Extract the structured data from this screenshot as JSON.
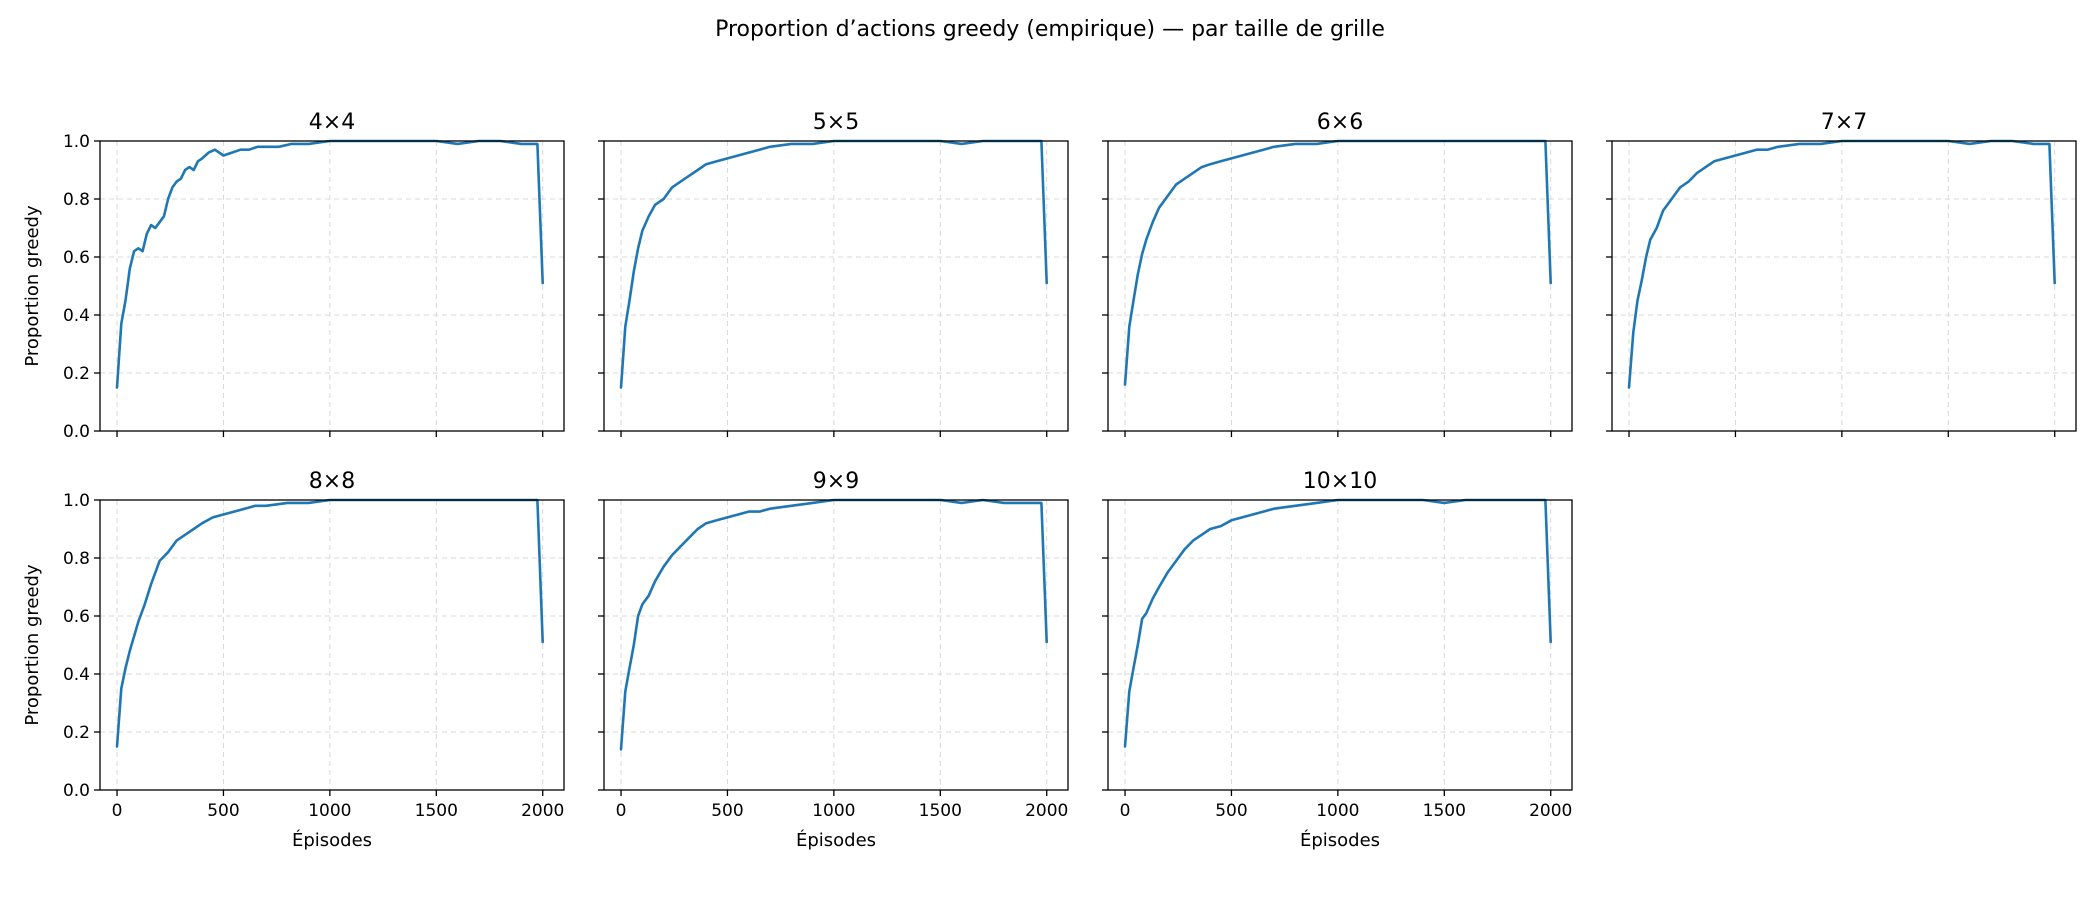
{
  "figure_title": "Proportion d’actions greedy (empirique) — par taille de grille",
  "colors": {
    "line": "#1f77b4",
    "grid": "#d9d9d9"
  },
  "chart_data": [
    {
      "type": "line",
      "title": "4×4",
      "xlabel": "",
      "ylabel": "Proportion greedy",
      "xlim": [
        -80,
        2100
      ],
      "ylim": [
        0,
        1.0
      ],
      "xticks": [
        0,
        500,
        1000,
        1500,
        2000
      ],
      "yticks": [
        0.0,
        0.2,
        0.4,
        0.6,
        0.8,
        1.0
      ],
      "x": [
        0,
        20,
        40,
        60,
        80,
        100,
        120,
        140,
        160,
        180,
        200,
        220,
        240,
        260,
        280,
        300,
        320,
        340,
        360,
        380,
        400,
        430,
        460,
        500,
        540,
        580,
        620,
        660,
        700,
        760,
        820,
        900,
        1000,
        1100,
        1200,
        1300,
        1400,
        1500,
        1600,
        1700,
        1800,
        1900,
        1960,
        1975,
        2000
      ],
      "y": [
        0.15,
        0.37,
        0.45,
        0.56,
        0.62,
        0.63,
        0.62,
        0.68,
        0.71,
        0.7,
        0.72,
        0.74,
        0.8,
        0.84,
        0.86,
        0.87,
        0.9,
        0.91,
        0.9,
        0.93,
        0.94,
        0.96,
        0.97,
        0.95,
        0.96,
        0.97,
        0.97,
        0.98,
        0.98,
        0.98,
        0.99,
        0.99,
        1.0,
        1.0,
        1.0,
        1.0,
        1.0,
        1.0,
        0.99,
        1.0,
        1.0,
        0.99,
        0.99,
        0.99,
        0.51
      ]
    },
    {
      "type": "line",
      "title": "5×5",
      "xlabel": "",
      "ylabel": "",
      "xlim": [
        -80,
        2100
      ],
      "ylim": [
        0,
        1.0
      ],
      "xticks": [
        0,
        500,
        1000,
        1500,
        2000
      ],
      "yticks": [
        0.0,
        0.2,
        0.4,
        0.6,
        0.8,
        1.0
      ],
      "x": [
        0,
        20,
        40,
        60,
        80,
        100,
        130,
        160,
        200,
        240,
        280,
        320,
        360,
        400,
        450,
        500,
        550,
        600,
        650,
        700,
        800,
        900,
        1000,
        1100,
        1200,
        1300,
        1400,
        1500,
        1600,
        1700,
        1800,
        1900,
        1960,
        1975,
        2000
      ],
      "y": [
        0.15,
        0.36,
        0.45,
        0.55,
        0.63,
        0.69,
        0.74,
        0.78,
        0.8,
        0.84,
        0.86,
        0.88,
        0.9,
        0.92,
        0.93,
        0.94,
        0.95,
        0.96,
        0.97,
        0.98,
        0.99,
        0.99,
        1.0,
        1.0,
        1.0,
        1.0,
        1.0,
        1.0,
        0.99,
        1.0,
        1.0,
        1.0,
        1.0,
        1.0,
        0.51
      ]
    },
    {
      "type": "line",
      "title": "6×6",
      "xlabel": "",
      "ylabel": "",
      "xlim": [
        -80,
        2100
      ],
      "ylim": [
        0,
        1.0
      ],
      "xticks": [
        0,
        500,
        1000,
        1500,
        2000
      ],
      "yticks": [
        0.0,
        0.2,
        0.4,
        0.6,
        0.8,
        1.0
      ],
      "x": [
        0,
        20,
        40,
        60,
        80,
        100,
        130,
        160,
        200,
        240,
        280,
        320,
        360,
        400,
        450,
        500,
        550,
        600,
        650,
        700,
        800,
        900,
        1000,
        1100,
        1200,
        1300,
        1400,
        1500,
        1600,
        1700,
        1800,
        1900,
        1960,
        1975,
        2000
      ],
      "y": [
        0.16,
        0.36,
        0.45,
        0.54,
        0.61,
        0.66,
        0.72,
        0.77,
        0.81,
        0.85,
        0.87,
        0.89,
        0.91,
        0.92,
        0.93,
        0.94,
        0.95,
        0.96,
        0.97,
        0.98,
        0.99,
        0.99,
        1.0,
        1.0,
        1.0,
        1.0,
        1.0,
        1.0,
        1.0,
        1.0,
        1.0,
        1.0,
        1.0,
        1.0,
        0.51
      ]
    },
    {
      "type": "line",
      "title": "7×7",
      "xlabel": "",
      "ylabel": "",
      "xlim": [
        -80,
        2100
      ],
      "ylim": [
        0,
        1.0
      ],
      "xticks": [
        0,
        500,
        1000,
        1500,
        2000
      ],
      "yticks": [
        0.0,
        0.2,
        0.4,
        0.6,
        0.8,
        1.0
      ],
      "x": [
        0,
        20,
        40,
        60,
        80,
        100,
        130,
        160,
        200,
        240,
        280,
        320,
        360,
        400,
        450,
        500,
        550,
        600,
        650,
        700,
        800,
        900,
        1000,
        1100,
        1200,
        1300,
        1400,
        1500,
        1600,
        1700,
        1800,
        1900,
        1960,
        1975,
        2000
      ],
      "y": [
        0.15,
        0.34,
        0.45,
        0.52,
        0.6,
        0.66,
        0.7,
        0.76,
        0.8,
        0.84,
        0.86,
        0.89,
        0.91,
        0.93,
        0.94,
        0.95,
        0.96,
        0.97,
        0.97,
        0.98,
        0.99,
        0.99,
        1.0,
        1.0,
        1.0,
        1.0,
        1.0,
        1.0,
        0.99,
        1.0,
        1.0,
        0.99,
        0.99,
        0.99,
        0.51
      ]
    },
    {
      "type": "line",
      "title": "8×8",
      "xlabel": "Épisodes",
      "ylabel": "Proportion greedy",
      "xlim": [
        -80,
        2100
      ],
      "ylim": [
        0,
        1.0
      ],
      "xticks": [
        0,
        500,
        1000,
        1500,
        2000
      ],
      "yticks": [
        0.0,
        0.2,
        0.4,
        0.6,
        0.8,
        1.0
      ],
      "x": [
        0,
        20,
        40,
        60,
        80,
        100,
        130,
        160,
        200,
        240,
        280,
        320,
        360,
        400,
        450,
        500,
        550,
        600,
        650,
        700,
        800,
        900,
        1000,
        1100,
        1200,
        1300,
        1400,
        1500,
        1600,
        1700,
        1800,
        1900,
        1960,
        1975,
        2000
      ],
      "y": [
        0.15,
        0.35,
        0.42,
        0.48,
        0.53,
        0.58,
        0.64,
        0.71,
        0.79,
        0.82,
        0.86,
        0.88,
        0.9,
        0.92,
        0.94,
        0.95,
        0.96,
        0.97,
        0.98,
        0.98,
        0.99,
        0.99,
        1.0,
        1.0,
        1.0,
        1.0,
        1.0,
        1.0,
        1.0,
        1.0,
        1.0,
        1.0,
        1.0,
        1.0,
        0.51
      ]
    },
    {
      "type": "line",
      "title": "9×9",
      "xlabel": "Épisodes",
      "ylabel": "",
      "xlim": [
        -80,
        2100
      ],
      "ylim": [
        0,
        1.0
      ],
      "xticks": [
        0,
        500,
        1000,
        1500,
        2000
      ],
      "yticks": [
        0.0,
        0.2,
        0.4,
        0.6,
        0.8,
        1.0
      ],
      "x": [
        0,
        20,
        40,
        60,
        80,
        100,
        130,
        160,
        200,
        240,
        280,
        320,
        360,
        400,
        450,
        500,
        550,
        600,
        650,
        700,
        800,
        900,
        1000,
        1100,
        1200,
        1300,
        1400,
        1500,
        1600,
        1700,
        1800,
        1900,
        1960,
        1975,
        2000
      ],
      "y": [
        0.14,
        0.34,
        0.42,
        0.5,
        0.6,
        0.64,
        0.67,
        0.72,
        0.77,
        0.81,
        0.84,
        0.87,
        0.9,
        0.92,
        0.93,
        0.94,
        0.95,
        0.96,
        0.96,
        0.97,
        0.98,
        0.99,
        1.0,
        1.0,
        1.0,
        1.0,
        1.0,
        1.0,
        0.99,
        1.0,
        0.99,
        0.99,
        0.99,
        0.99,
        0.51
      ]
    },
    {
      "type": "line",
      "title": "10×10",
      "xlabel": "Épisodes",
      "ylabel": "",
      "xlim": [
        -80,
        2100
      ],
      "ylim": [
        0,
        1.0
      ],
      "xticks": [
        0,
        500,
        1000,
        1500,
        2000
      ],
      "yticks": [
        0.0,
        0.2,
        0.4,
        0.6,
        0.8,
        1.0
      ],
      "x": [
        0,
        20,
        40,
        60,
        80,
        100,
        130,
        160,
        200,
        240,
        280,
        320,
        360,
        400,
        450,
        500,
        550,
        600,
        650,
        700,
        800,
        900,
        1000,
        1100,
        1200,
        1300,
        1400,
        1500,
        1600,
        1700,
        1800,
        1900,
        1960,
        1975,
        2000
      ],
      "y": [
        0.15,
        0.34,
        0.42,
        0.5,
        0.59,
        0.61,
        0.66,
        0.7,
        0.75,
        0.79,
        0.83,
        0.86,
        0.88,
        0.9,
        0.91,
        0.93,
        0.94,
        0.95,
        0.96,
        0.97,
        0.98,
        0.99,
        1.0,
        1.0,
        1.0,
        1.0,
        1.0,
        0.99,
        1.0,
        1.0,
        1.0,
        1.0,
        1.0,
        1.0,
        0.51
      ]
    }
  ]
}
